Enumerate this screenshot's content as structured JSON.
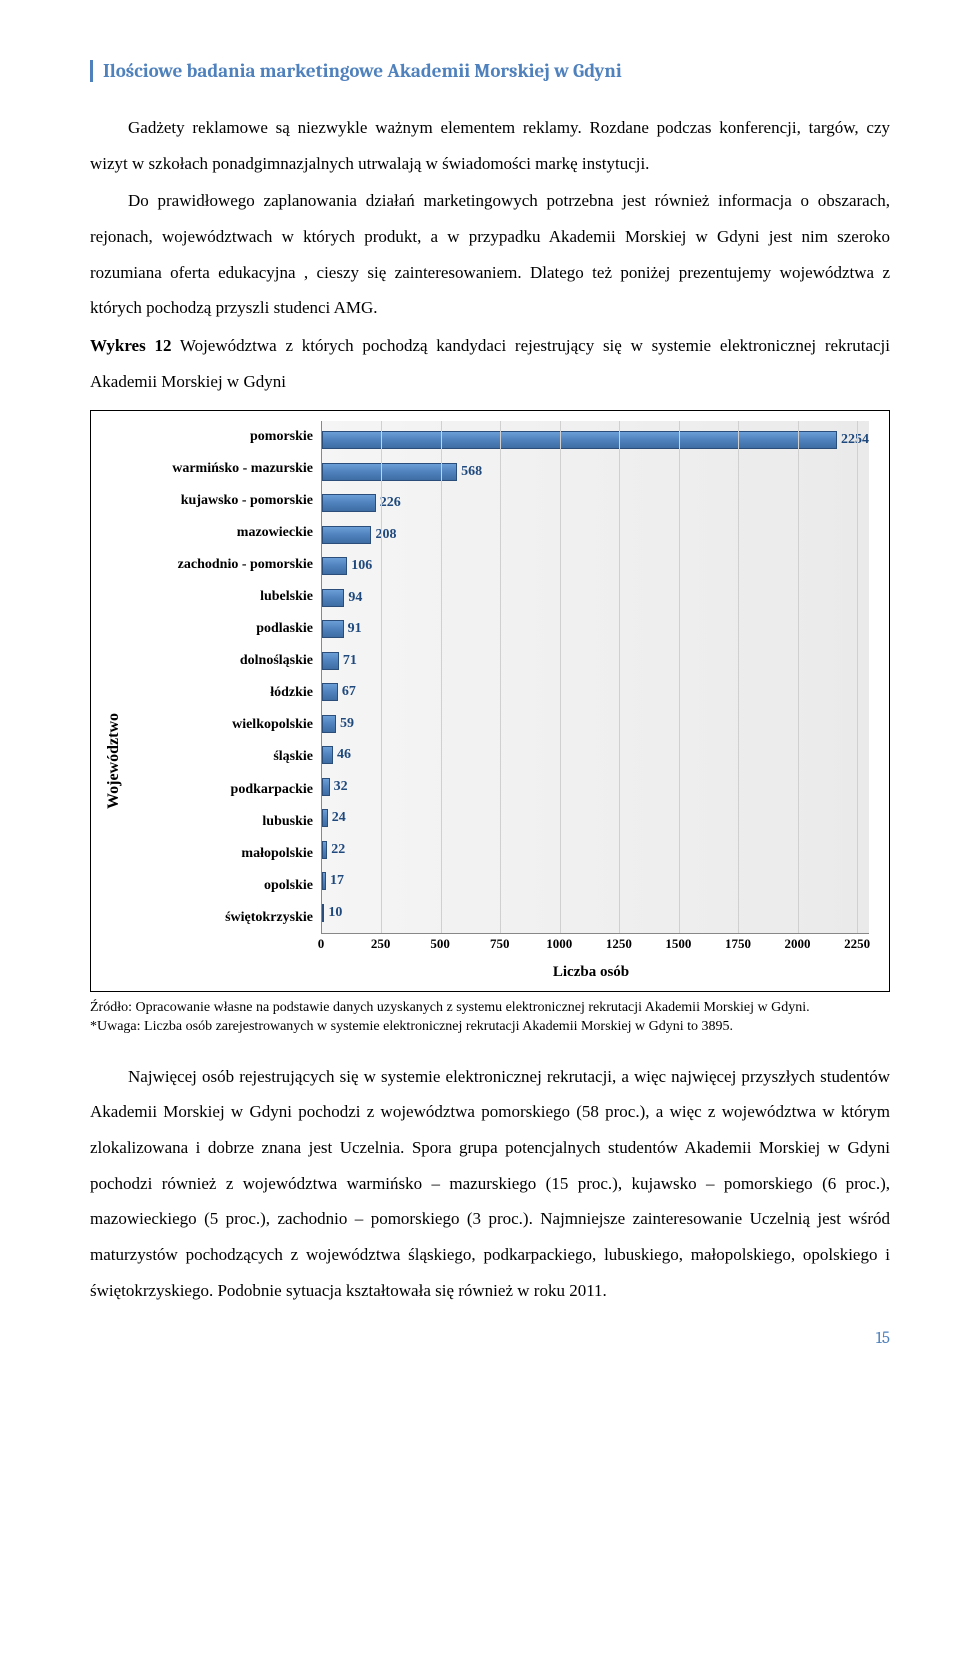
{
  "header": {
    "title": "Ilościowe badania marketingowe Akademii Morskiej w Gdyni"
  },
  "paragraphs": {
    "p1": "Gadżety reklamowe są niezwykle ważnym elementem reklamy. Rozdane podczas konferencji, targów, czy wizyt w szkołach ponadgimnazjalnych utrwalają w świadomości markę instytucji.",
    "p2": "Do prawidłowego zaplanowania działań marketingowych potrzebna jest również informacja o obszarach, rejonach, województwach w których produkt, a w przypadku Akademii Morskiej w Gdyni jest nim szeroko rozumiana oferta edukacyjna , cieszy się zainteresowaniem. Dlatego też poniżej prezentujemy województwa z których pochodzą przyszli studenci AMG.",
    "p3_bold": "Wykres 12",
    "p3_rest": " Województwa z których pochodzą kandydaci rejestrujący się w systemie elektronicznej rekrutacji Akademii Morskiej w Gdyni",
    "p4": "Najwięcej osób rejestrujących się w systemie elektronicznej rekrutacji, a więc najwięcej przyszłych studentów Akademii Morskiej w Gdyni pochodzi z województwa pomorskiego (58 proc.), a więc z województwa w którym zlokalizowana i dobrze znana jest Uczelnia. Spora grupa potencjalnych studentów Akademii Morskiej w Gdyni pochodzi również z województwa warmińsko – mazurskiego (15 proc.), kujawsko – pomorskiego (6 proc.), mazowieckiego (5 proc.), zachodnio – pomorskiego (3 proc.). Najmniejsze zainteresowanie Uczelnią jest wśród maturzystów pochodzących z województwa śląskiego, podkarpackiego, lubuskiego, małopolskiego, opolskiego i świętokrzyskiego. Podobnie sytuacja kształtowała się również w roku 2011."
  },
  "source": {
    "line1": "Źródło: Opracowanie własne na podstawie danych uzyskanych z systemu elektronicznej rekrutacji Akademii Morskiej w Gdyni.",
    "line2": "*Uwaga: Liczba osób zarejestrowanych w systemie elektronicznej rekrutacji Akademii Morskiej w Gdyni to 3895."
  },
  "chart": {
    "type": "bar-horizontal",
    "yaxis_label": "Województwo",
    "xaxis_label": "Liczba osób",
    "xlim": [
      0,
      2300
    ],
    "xticks": [
      0,
      250,
      500,
      750,
      1000,
      1250,
      1500,
      1750,
      2000,
      2250
    ],
    "bar_color": "#4f81bd",
    "value_color": "#1f497d",
    "background_color": "#efefef",
    "grid_color": "#d0d0d0",
    "categories": [
      "pomorskie",
      "warmińsko - mazurskie",
      "kujawsko - pomorskie",
      "mazowieckie",
      "zachodnio - pomorskie",
      "lubelskie",
      "podlaskie",
      "dolnośląskie",
      "łódzkie",
      "wielkopolskie",
      "śląskie",
      "podkarpackie",
      "lubuskie",
      "małopolskie",
      "opolskie",
      "świętokrzyskie"
    ],
    "values": [
      2254,
      568,
      226,
      208,
      106,
      94,
      91,
      71,
      67,
      59,
      46,
      32,
      24,
      22,
      17,
      10
    ]
  },
  "page_number": "15"
}
